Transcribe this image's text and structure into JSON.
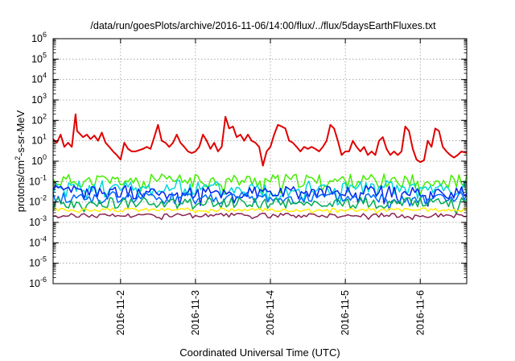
{
  "chart_data": {
    "type": "line",
    "title": "/data/run/goesPlots/archive/2016-11-06/14:00/flux/../flux/5daysEarthFluxes.txt",
    "xlabel": "Coordinated Universal Time (UTC)",
    "ylabel": {
      "base": "protons/cm",
      "sup": "2",
      "rest": "-s-sr-MeV"
    },
    "yscale": "log",
    "ylim_exponents": [
      -6,
      6
    ],
    "ytick_exponents": [
      -6,
      -5,
      -4,
      -3,
      -2,
      -1,
      0,
      1,
      2,
      3,
      4,
      5,
      6
    ],
    "ytick_base": "10",
    "xlim_days": [
      1.1,
      6.62
    ],
    "xticks": [
      {
        "x": 2,
        "label": "2016-11-2"
      },
      {
        "x": 3,
        "label": "2016-11-3"
      },
      {
        "x": 4,
        "label": "2016-11-4"
      },
      {
        "x": 5,
        "label": "2016-11-5"
      },
      {
        "x": 6,
        "label": "2016-11-6"
      }
    ],
    "grid": true,
    "series": [
      {
        "color": "#e00000",
        "width": 2.0,
        "points": [
          [
            1.1,
            12
          ],
          [
            1.15,
            8
          ],
          [
            1.2,
            20
          ],
          [
            1.25,
            5
          ],
          [
            1.3,
            8
          ],
          [
            1.35,
            5
          ],
          [
            1.4,
            200
          ],
          [
            1.42,
            30
          ],
          [
            1.5,
            15
          ],
          [
            1.55,
            20
          ],
          [
            1.6,
            12
          ],
          [
            1.65,
            18
          ],
          [
            1.7,
            10
          ],
          [
            1.75,
            25
          ],
          [
            1.8,
            8
          ],
          [
            1.85,
            5
          ],
          [
            1.9,
            3
          ],
          [
            1.95,
            2
          ],
          [
            2.0,
            1.2
          ],
          [
            2.05,
            8
          ],
          [
            2.1,
            4
          ],
          [
            2.15,
            3
          ],
          [
            2.2,
            3
          ],
          [
            2.3,
            4
          ],
          [
            2.35,
            5
          ],
          [
            2.4,
            4
          ],
          [
            2.45,
            15
          ],
          [
            2.5,
            60
          ],
          [
            2.55,
            10
          ],
          [
            2.6,
            8
          ],
          [
            2.65,
            5
          ],
          [
            2.7,
            8
          ],
          [
            2.75,
            20
          ],
          [
            2.8,
            8
          ],
          [
            2.85,
            5
          ],
          [
            2.9,
            3
          ],
          [
            2.95,
            2.5
          ],
          [
            3.0,
            3
          ],
          [
            3.05,
            5
          ],
          [
            3.1,
            20
          ],
          [
            3.15,
            10
          ],
          [
            3.2,
            4
          ],
          [
            3.25,
            8
          ],
          [
            3.3,
            3
          ],
          [
            3.35,
            5
          ],
          [
            3.4,
            150
          ],
          [
            3.45,
            40
          ],
          [
            3.5,
            50
          ],
          [
            3.55,
            15
          ],
          [
            3.6,
            20
          ],
          [
            3.65,
            10
          ],
          [
            3.7,
            20
          ],
          [
            3.75,
            10
          ],
          [
            3.8,
            8
          ],
          [
            3.85,
            5
          ],
          [
            3.9,
            0.6
          ],
          [
            3.95,
            3
          ],
          [
            4.0,
            5
          ],
          [
            4.05,
            20
          ],
          [
            4.1,
            60
          ],
          [
            4.15,
            50
          ],
          [
            4.2,
            40
          ],
          [
            4.25,
            10
          ],
          [
            4.3,
            8
          ],
          [
            4.35,
            5
          ],
          [
            4.4,
            3
          ],
          [
            4.45,
            5
          ],
          [
            4.5,
            4
          ],
          [
            4.55,
            5
          ],
          [
            4.6,
            4
          ],
          [
            4.65,
            3
          ],
          [
            4.7,
            5
          ],
          [
            4.75,
            10
          ],
          [
            4.8,
            60
          ],
          [
            4.85,
            40
          ],
          [
            4.9,
            10
          ],
          [
            4.95,
            2
          ],
          [
            5.0,
            3
          ],
          [
            5.05,
            3
          ],
          [
            5.1,
            10
          ],
          [
            5.15,
            5
          ],
          [
            5.2,
            3
          ],
          [
            5.25,
            5
          ],
          [
            5.3,
            2
          ],
          [
            5.35,
            3
          ],
          [
            5.4,
            2
          ],
          [
            5.45,
            10
          ],
          [
            5.5,
            15
          ],
          [
            5.55,
            4
          ],
          [
            5.6,
            2
          ],
          [
            5.65,
            3
          ],
          [
            5.7,
            2
          ],
          [
            5.75,
            3
          ],
          [
            5.8,
            50
          ],
          [
            5.85,
            30
          ],
          [
            5.9,
            4
          ],
          [
            5.95,
            1.2
          ],
          [
            6.0,
            0.9
          ],
          [
            6.05,
            1.1
          ],
          [
            6.1,
            10
          ],
          [
            6.15,
            5
          ],
          [
            6.2,
            40
          ],
          [
            6.25,
            30
          ],
          [
            6.3,
            5
          ],
          [
            6.35,
            3
          ],
          [
            6.4,
            2
          ],
          [
            6.45,
            1.5
          ],
          [
            6.5,
            2
          ],
          [
            6.55,
            3
          ],
          [
            6.62,
            2.5
          ]
        ]
      },
      {
        "color": "#44ee00",
        "width": 1.5,
        "base": 0.11,
        "noise": 0.55,
        "seed": 11
      },
      {
        "color": "#00d8d8",
        "width": 1.5,
        "base": 0.045,
        "noise": 0.7,
        "seed": 23
      },
      {
        "color": "#0022ee",
        "width": 1.5,
        "base": 0.03,
        "noise": 0.55,
        "seed": 37
      },
      {
        "color": "#0066ff",
        "width": 1.5,
        "base": 0.016,
        "noise": 0.5,
        "seed": 41
      },
      {
        "color": "#00aa55",
        "width": 1.5,
        "base": 0.009,
        "noise": 0.45,
        "seed": 53
      },
      {
        "color": "#ffee00",
        "width": 1.5,
        "base": 0.0042,
        "noise": 0.15,
        "seed": 67
      },
      {
        "color": "#8b2252",
        "width": 1.5,
        "base": 0.0022,
        "noise": 0.18,
        "seed": 79
      }
    ]
  }
}
